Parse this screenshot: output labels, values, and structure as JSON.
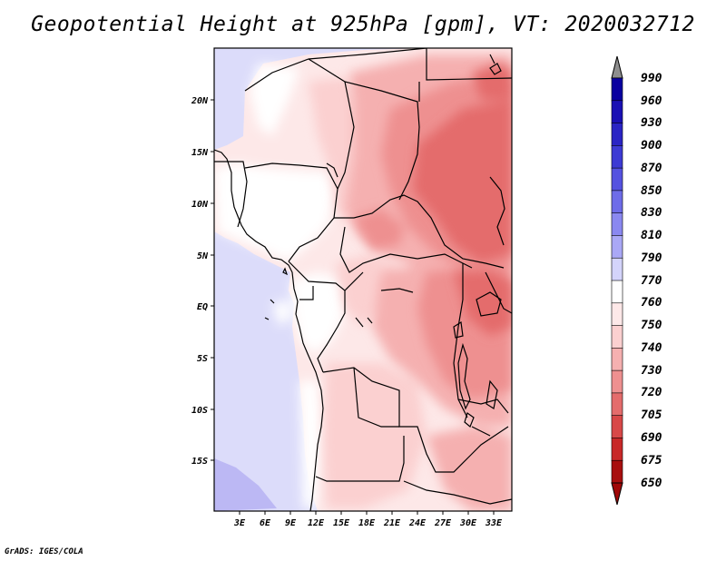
{
  "title": "Geopotential Height at 925hPa [gpm], VT: 2020032712",
  "credit": "GrADS: IGES/COLA",
  "map": {
    "lat_labels": [
      "20N",
      "15N",
      "10N",
      "5N",
      "EQ",
      "5S",
      "10S",
      "15S"
    ],
    "lon_labels": [
      "3E",
      "6E",
      "9E",
      "12E",
      "15E",
      "18E",
      "21E",
      "24E",
      "27E",
      "30E",
      "33E"
    ]
  },
  "colorbar": {
    "levels": [
      "990",
      "960",
      "930",
      "900",
      "870",
      "850",
      "830",
      "810",
      "790",
      "770",
      "760",
      "750",
      "740",
      "730",
      "720",
      "705",
      "690",
      "675",
      "650"
    ],
    "colors": [
      "#8e8e8e",
      "#0a00a0",
      "#1a10b4",
      "#2a24c4",
      "#3d3ad4",
      "#5552e0",
      "#6e6ce8",
      "#8a88f0",
      "#aaa8f6",
      "#d4d4fb",
      "#ffffff",
      "#fde8e8",
      "#fbd0d0",
      "#f5b0b0",
      "#ee9090",
      "#e46c6c",
      "#d84848",
      "#c82828",
      "#a80f0f",
      "#a00808"
    ]
  }
}
